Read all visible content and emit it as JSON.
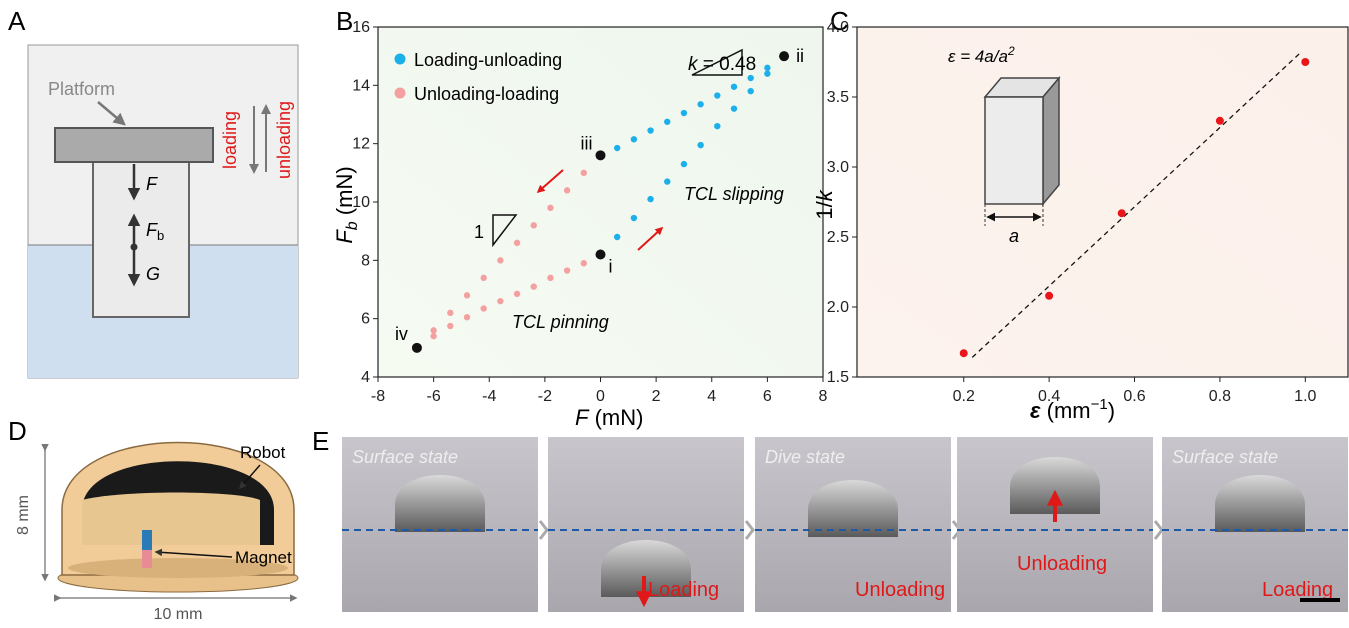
{
  "panel_labels": [
    "A",
    "B",
    "C",
    "D",
    "E"
  ],
  "panel_a": {
    "platform": "Platform",
    "force_f": "F",
    "force_fb": {
      "symbol": "F",
      "subscript": "b"
    },
    "force_g": "G",
    "loading": "loading",
    "unloading": "unloading"
  },
  "chart_data": [
    {
      "type": "scatter",
      "xlim": [
        -8,
        8
      ],
      "ylim": [
        4,
        16
      ],
      "xticks": [
        -8,
        -6,
        -4,
        -2,
        0,
        2,
        4,
        6,
        8
      ],
      "yticks": [
        4,
        6,
        8,
        10,
        12,
        14,
        16
      ],
      "x_label": {
        "symbol": "F",
        "unit": "(mN)"
      },
      "y_label": {
        "symbol": "F",
        "subscript": "b",
        "unit": "(mN)"
      },
      "series": [
        {
          "name": "Loading-unloading",
          "color": "#1cb0ea",
          "x": [
            0,
            0.6,
            1.2,
            1.8,
            2.4,
            3.0,
            3.6,
            4.2,
            4.8,
            5.4,
            6.0,
            6.6,
            6.0,
            5.4,
            4.8,
            4.2,
            3.6,
            3.0,
            2.4,
            1.8,
            1.2,
            0.6
          ],
          "values": [
            8.2,
            8.8,
            9.45,
            10.1,
            10.7,
            11.3,
            11.95,
            12.6,
            13.2,
            13.8,
            14.4,
            15.0,
            14.6,
            14.25,
            13.95,
            13.65,
            13.35,
            13.05,
            12.75,
            12.45,
            12.15,
            11.85
          ]
        },
        {
          "name": "Unloading-loading",
          "color": "#f4a0a0",
          "x": [
            -0.6,
            -1.2,
            -1.8,
            -2.4,
            -3.0,
            -3.6,
            -4.2,
            -4.8,
            -5.4,
            -6.0,
            -6.6,
            -6.0,
            -5.4,
            -4.8,
            -4.2,
            -3.6,
            -3.0,
            -2.4,
            -1.8,
            -1.2,
            -0.6
          ],
          "values": [
            11.0,
            10.4,
            9.8,
            9.2,
            8.6,
            8.0,
            7.4,
            6.8,
            6.2,
            5.6,
            5.0,
            5.4,
            5.75,
            6.05,
            6.35,
            6.6,
            6.85,
            7.1,
            7.4,
            7.65,
            7.9
          ]
        }
      ],
      "key_points": {
        "labels": [
          "i",
          "ii",
          "iii",
          "iv"
        ],
        "x": [
          0,
          6.6,
          0,
          -6.6
        ],
        "values": [
          8.2,
          15,
          11.6,
          5
        ],
        "color": "#111111"
      },
      "annotations": {
        "slope": {
          "symbol": "k",
          "text": "= 0.48"
        },
        "slope_unit": "1",
        "slipping": "TCL slipping",
        "pinning": "TCL pinning"
      }
    },
    {
      "type": "scatter",
      "xlim": [
        -0.05,
        1.1
      ],
      "ylim": [
        1.5,
        4
      ],
      "xticks": [
        0.2,
        0.4,
        0.6,
        0.8,
        {
          "value": 1,
          "label": "1.0"
        }
      ],
      "yticks": [
        1.5,
        {
          "value": 2,
          "label": "2.0"
        },
        2.5,
        {
          "value": 3,
          "label": "3.0"
        },
        3.5,
        {
          "value": 4,
          "label": "4.0"
        }
      ],
      "x_label": {
        "symbol": "ε",
        "unit": "(mm",
        "exponent": "−1",
        "close": ")"
      },
      "y_label": {
        "numerator": "1/",
        "symbol": "k"
      },
      "series": [
        {
          "color": "#e8161b",
          "x": [
            0.2,
            0.4,
            0.57,
            0.8,
            1.0
          ],
          "values": [
            1.67,
            2.08,
            2.67,
            3.33,
            3.75
          ]
        }
      ],
      "fit": {
        "x": [
          0.22,
          0.99
        ],
        "values": [
          1.64,
          3.82
        ]
      },
      "inset": {
        "formula": "ε = 4a/a",
        "exponent": "2",
        "dimension": "a"
      }
    }
  ],
  "panel_d": {
    "robot": "Robot",
    "magnet": "Magnet",
    "height": "8 mm",
    "width": "10 mm"
  },
  "panel_e": {
    "frames": [
      {
        "caption": "Surface state"
      },
      {
        "action": "Loading"
      },
      {
        "caption": "Dive state",
        "action": "Unloading"
      },
      {
        "action": "Unloading"
      },
      {
        "caption": "Surface state",
        "action": "Loading"
      }
    ]
  }
}
